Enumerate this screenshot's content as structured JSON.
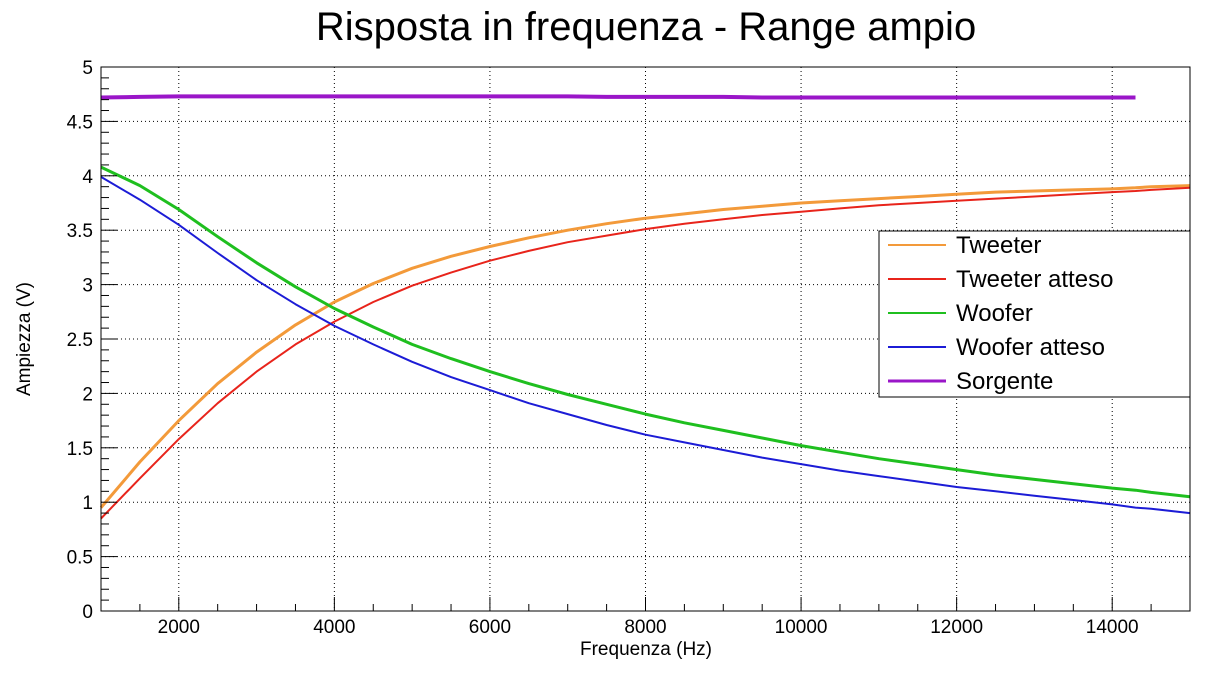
{
  "chart_data": {
    "type": "line",
    "title": "Risposta in frequenza - Range ampio",
    "xlabel": "Frequenza (Hz)",
    "ylabel": "Ampiezza (V)",
    "xlim": [
      1000,
      15000
    ],
    "ylim": [
      0,
      5
    ],
    "x_ticks": [
      2000,
      4000,
      6000,
      8000,
      10000,
      12000,
      14000
    ],
    "y_ticks": [
      0,
      0.5,
      1,
      1.5,
      2,
      2.5,
      3,
      3.5,
      4,
      4.5,
      5
    ],
    "y_tick_labels": [
      "0",
      "0.5",
      "1",
      "1.5",
      "2",
      "2.5",
      "3",
      "3.5",
      "4",
      "4.5",
      "5"
    ],
    "grid": true,
    "legend_position": "right",
    "x": [
      1000,
      1500,
      2000,
      2500,
      3000,
      3500,
      4000,
      4500,
      5000,
      5500,
      6000,
      6500,
      7000,
      7500,
      8000,
      8500,
      9000,
      9500,
      10000,
      10500,
      11000,
      11500,
      12000,
      12500,
      13000,
      13500,
      14000,
      14300,
      14500,
      15000
    ],
    "series": [
      {
        "name": "Tweeter",
        "color": "#f39a3a",
        "width": 3,
        "values": [
          0.95,
          1.37,
          1.75,
          2.09,
          2.38,
          2.63,
          2.84,
          3.01,
          3.15,
          3.26,
          3.35,
          3.43,
          3.5,
          3.56,
          3.61,
          3.65,
          3.69,
          3.72,
          3.75,
          3.77,
          3.79,
          3.81,
          3.83,
          3.85,
          3.86,
          3.87,
          3.88,
          3.89,
          3.9,
          3.91
        ]
      },
      {
        "name": "Tweeter atteso",
        "color": "#e8241b",
        "width": 2,
        "values": [
          0.85,
          1.22,
          1.58,
          1.91,
          2.2,
          2.45,
          2.66,
          2.84,
          2.99,
          3.11,
          3.22,
          3.31,
          3.39,
          3.45,
          3.51,
          3.56,
          3.6,
          3.64,
          3.67,
          3.7,
          3.73,
          3.75,
          3.77,
          3.79,
          3.81,
          3.83,
          3.85,
          3.86,
          3.87,
          3.89
        ]
      },
      {
        "name": "Woofer",
        "color": "#1fbf1f",
        "width": 3,
        "values": [
          4.08,
          3.91,
          3.69,
          3.44,
          3.2,
          2.98,
          2.78,
          2.61,
          2.45,
          2.32,
          2.2,
          2.09,
          1.99,
          1.9,
          1.81,
          1.73,
          1.66,
          1.59,
          1.52,
          1.46,
          1.4,
          1.35,
          1.3,
          1.25,
          1.21,
          1.17,
          1.13,
          1.11,
          1.09,
          1.05
        ]
      },
      {
        "name": "Woofer atteso",
        "color": "#1c1cd6",
        "width": 2,
        "values": [
          3.99,
          3.78,
          3.55,
          3.29,
          3.04,
          2.82,
          2.62,
          2.45,
          2.29,
          2.15,
          2.03,
          1.91,
          1.81,
          1.71,
          1.62,
          1.55,
          1.48,
          1.41,
          1.35,
          1.29,
          1.24,
          1.19,
          1.14,
          1.1,
          1.06,
          1.02,
          0.98,
          0.95,
          0.94,
          0.9
        ]
      },
      {
        "name": "Sorgente",
        "color": "#9a16c8",
        "width": 4,
        "values": [
          4.72,
          4.725,
          4.73,
          4.73,
          4.73,
          4.73,
          4.73,
          4.73,
          4.73,
          4.73,
          4.73,
          4.73,
          4.73,
          4.725,
          4.725,
          4.725,
          4.725,
          4.72,
          4.72,
          4.72,
          4.72,
          4.72,
          4.72,
          4.72,
          4.72,
          4.72,
          4.72,
          4.72,
          null,
          null
        ]
      }
    ]
  }
}
